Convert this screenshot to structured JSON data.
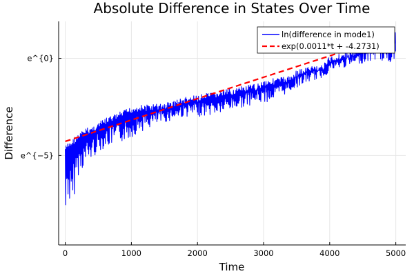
{
  "chart_data": {
    "type": "line",
    "title": "Absolute Difference in States Over Time",
    "xlabel": "Time",
    "ylabel": "Difference",
    "xlim": [
      -100,
      5150
    ],
    "ylim": [
      -9.6,
      1.9
    ],
    "x_ticks": [
      {
        "value": 0,
        "label": "0"
      },
      {
        "value": 1000,
        "label": "1000"
      },
      {
        "value": 2000,
        "label": "2000"
      },
      {
        "value": 3000,
        "label": "3000"
      },
      {
        "value": 4000,
        "label": "4000"
      },
      {
        "value": 5000,
        "label": "5000"
      }
    ],
    "y_ticks": [
      {
        "value": 0,
        "label": "e^{0}"
      },
      {
        "value": -5,
        "label": "e^{−5}"
      }
    ],
    "grid": true,
    "legend_position": "top-right",
    "series": [
      {
        "name": "ln(difference in mode1)",
        "style": "solid",
        "color": "#0000ff",
        "envelope_upper": {
          "x": [
            0,
            30,
            60,
            100,
            150,
            200,
            300,
            400,
            500,
            600,
            800,
            1000,
            1100,
            1200,
            1500,
            1800,
            2000,
            2300,
            2600,
            2900,
            3000,
            3200,
            3400,
            3500,
            3700,
            3900,
            4000,
            4200,
            4400,
            4600,
            4700,
            4800,
            4900,
            5000
          ],
          "y": [
            -4.5,
            -4.4,
            -4.3,
            -4.2,
            -4.0,
            -3.9,
            -3.6,
            -3.5,
            -3.3,
            -3.1,
            -2.8,
            -2.5,
            -2.4,
            -2.4,
            -2.3,
            -2.0,
            -1.9,
            -1.7,
            -1.5,
            -1.3,
            -1.1,
            -1.0,
            -0.9,
            -0.6,
            -0.4,
            -0.3,
            0.1,
            0.3,
            0.4,
            1.0,
            1.6,
            1.6,
            1.6,
            1.3
          ]
        },
        "envelope_lower": {
          "x": [
            0,
            30,
            60,
            100,
            150,
            200,
            300,
            400,
            500,
            600,
            800,
            1000,
            1100,
            1200,
            1500,
            1800,
            2000,
            2300,
            2600,
            2900,
            3000,
            3200,
            3400,
            3500,
            3700,
            3900,
            4000,
            4200,
            4400,
            4600,
            4700,
            4800,
            4900,
            5000
          ],
          "y": [
            -9.2,
            -7.0,
            -7.5,
            -8.7,
            -6.5,
            -6.0,
            -5.5,
            -5.2,
            -4.8,
            -4.6,
            -4.4,
            -4.1,
            -3.8,
            -3.7,
            -3.3,
            -3.0,
            -3.0,
            -2.9,
            -2.6,
            -2.3,
            -2.3,
            -2.1,
            -1.7,
            -1.5,
            -1.2,
            -1.0,
            -0.7,
            -0.5,
            -0.3,
            -0.2,
            -0.1,
            -0.2,
            -0.3,
            0.0
          ]
        }
      },
      {
        "name": "exp(0.0011*t + -4.2731)",
        "style": "dashed",
        "color": "#ff0000",
        "x": [
          0,
          5000
        ],
        "y": [
          -4.2731,
          1.2269
        ]
      }
    ]
  }
}
